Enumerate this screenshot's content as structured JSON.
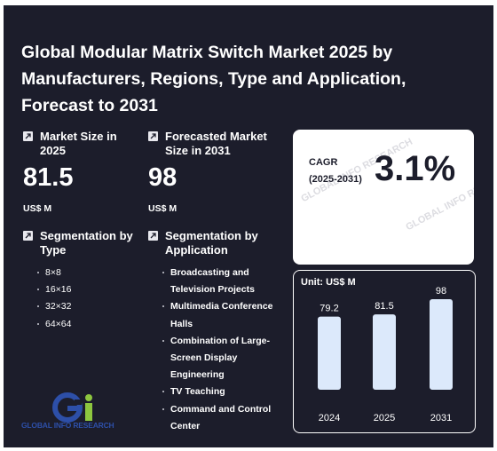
{
  "title": "Global Modular Matrix Switch Market 2025 by Manufacturers, Regions, Type and Application, Forecast to 2031",
  "market_size": {
    "label": "Market Size in 2025",
    "value": "81.5",
    "unit": "US$ M"
  },
  "forecast_size": {
    "label": "Forecasted Market Size in 2031",
    "value": "98",
    "unit": "US$ M"
  },
  "cagr": {
    "label": "CAGR",
    "period": "(2025-2031)",
    "value": "3.1%"
  },
  "segment_type": {
    "label": "Segmentation by Type",
    "items": [
      "8×8",
      "16×16",
      "32×32",
      "64×64"
    ]
  },
  "segment_application": {
    "label": "Segmentation by Application",
    "items": [
      "Broadcasting and Television Projects",
      "Multimedia Conference Halls",
      "Combination of Large-Screen Display Engineering",
      "TV Teaching",
      "Command and Control Center"
    ]
  },
  "logo": {
    "text": "GLOBAL INFO RESEARCH",
    "mark": "Gi"
  },
  "colors": {
    "background": "#1c1d2b",
    "bar": "#dce9fb",
    "logo_blue": "#2d4fa8",
    "logo_green": "#8dc63f"
  },
  "chart_data": {
    "type": "bar",
    "unit_label": "Unit: US$ M",
    "categories": [
      "2024",
      "2025",
      "2031"
    ],
    "values": [
      79.2,
      81.5,
      98
    ],
    "data_labels": [
      "79.2",
      "81.5",
      "98"
    ]
  }
}
